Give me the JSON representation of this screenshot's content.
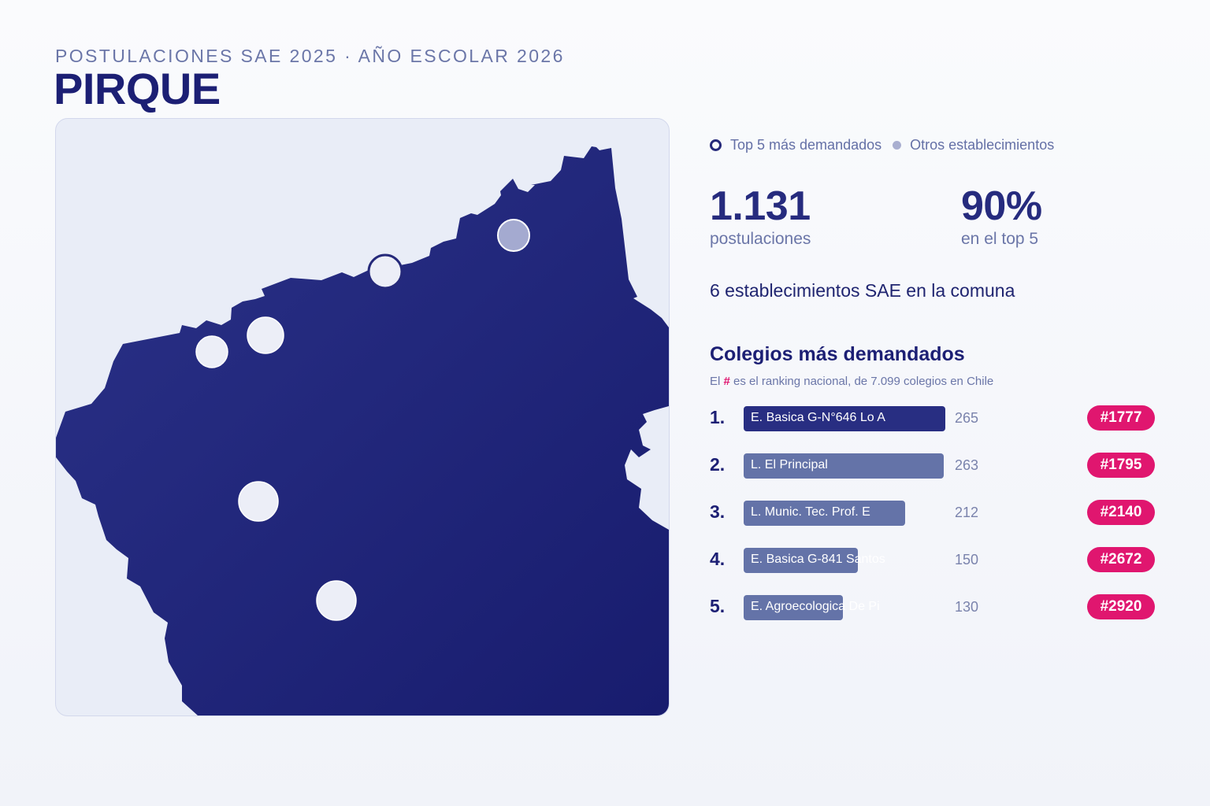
{
  "header": {
    "supertitle": "POSTULACIONES SAE 2025 · AÑO ESCOLAR 2026",
    "title": "PIRQUE"
  },
  "legend": {
    "top5_label": "Top 5 más demandados",
    "others_label": "Otros establecimientos"
  },
  "stats": {
    "applications_value": "1.131",
    "applications_label": "postulaciones",
    "top5_share_value": "90%",
    "top5_share_label": "en el top 5"
  },
  "schools_count_text": "6 establecimientos SAE en la comuna",
  "ranking_section": {
    "title": "Colegios más demandados",
    "note_prefix": "El",
    "note_hash": "#",
    "note_suffix": "es el ranking nacional, de 7.099 colegios en Chile",
    "items": [
      {
        "position": "1.",
        "name": "E. Basica G-N°646 Lo A",
        "applications": 265,
        "applications_label": "265",
        "national_rank": "#1777"
      },
      {
        "position": "2.",
        "name": "L. El Principal",
        "applications": 263,
        "applications_label": "263",
        "national_rank": "#1795"
      },
      {
        "position": "3.",
        "name": "L. Munic. Tec. Prof. E",
        "applications": 212,
        "applications_label": "212",
        "national_rank": "#2140"
      },
      {
        "position": "4.",
        "name": "E. Basica G-841 Santos",
        "applications": 150,
        "applications_label": "150",
        "national_rank": "#2672"
      },
      {
        "position": "5.",
        "name": "E. Agroecologica De Pi",
        "applications": 130,
        "applications_label": "130",
        "national_rank": "#2920"
      }
    ]
  },
  "map": {
    "region_fill": "#222780",
    "background": "#e9edf7",
    "markers": [
      {
        "name": "top5-school-marker",
        "kind": "top5"
      },
      {
        "name": "top5-school-marker",
        "kind": "top5"
      },
      {
        "name": "top5-school-marker",
        "kind": "top5"
      },
      {
        "name": "top5-school-marker",
        "kind": "top5"
      },
      {
        "name": "top5-school-marker",
        "kind": "top5"
      },
      {
        "name": "other-school-marker",
        "kind": "other"
      }
    ]
  },
  "colors": {
    "accent": "#e0166f",
    "navy": "#1c1f74",
    "bar_top": "#282e82",
    "bar_other": "#6473a8",
    "muted_text": "#6b76a8"
  }
}
